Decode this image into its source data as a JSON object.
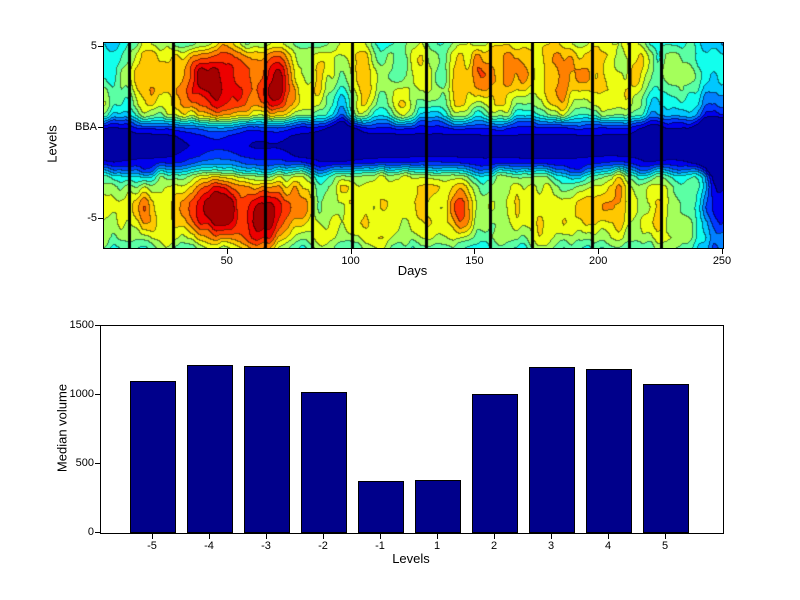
{
  "figure": {
    "background": "#ffffff"
  },
  "chart_data": [
    {
      "type": "heatmap",
      "title": "",
      "xlabel": "Days",
      "ylabel": "Levels",
      "xlim": [
        0,
        250
      ],
      "ylim_display": [
        5,
        -5
      ],
      "xticks": [
        50,
        100,
        150,
        200,
        250
      ],
      "ytick_labels": [
        "5",
        "BBA",
        "-5"
      ],
      "colormap": "jet",
      "grid": false,
      "description": "Filled contour of order-book volume by price level and day. Deep dark-blue band at the BBA (mid levels), cyan ring around it, green-yellow at outer levels, red-orange hotspots near days 35-75 at levels +/-2 to +/-4, cooler cyan-blue at the right edge. Thick black vertical event lines at selected days.",
      "event_lines_days": [
        10,
        28,
        65,
        84,
        100,
        130,
        156,
        173,
        197,
        212,
        225
      ],
      "pattern": {
        "contour_levels": 14,
        "level_profile": [
          [
            0.0,
            0.02
          ],
          [
            0.1,
            0.05
          ],
          [
            0.17,
            0.12
          ],
          [
            0.23,
            0.26
          ],
          [
            0.3,
            0.45
          ],
          [
            0.4,
            0.56
          ],
          [
            0.55,
            0.62
          ],
          [
            0.75,
            0.62
          ],
          [
            0.9,
            0.58
          ],
          [
            1.0,
            0.5
          ]
        ],
        "spots": [
          [
            44,
            3.1,
            9,
            1.5,
            0.3
          ],
          [
            47,
            -3.0,
            10,
            1.7,
            0.34
          ],
          [
            69,
            3.1,
            5,
            1.3,
            0.26
          ],
          [
            70,
            -3.2,
            5,
            1.5,
            0.22
          ],
          [
            60,
            -4.0,
            4,
            1.2,
            0.18
          ],
          [
            133,
            -3.2,
            10,
            1.5,
            0.1
          ],
          [
            160,
            3.0,
            8,
            1.5,
            0.08
          ],
          [
            193,
            3.4,
            10,
            1.4,
            0.1
          ],
          [
            205,
            -3.0,
            8,
            1.5,
            0.09
          ],
          [
            95,
            2.3,
            5,
            2.0,
            -0.16
          ],
          [
            3,
            4.3,
            5,
            2.2,
            -0.18
          ],
          [
            2,
            -4.5,
            4,
            2.0,
            -0.15
          ],
          [
            222,
            2.6,
            4,
            2.0,
            -0.14
          ],
          [
            245,
            3.0,
            6,
            2.5,
            -0.2
          ],
          [
            246,
            -3.0,
            6,
            2.5,
            -0.18
          ]
        ]
      }
    },
    {
      "type": "bar",
      "title": "",
      "xlabel": "Levels",
      "ylabel": "Median volume",
      "categories": [
        "-5",
        "-4",
        "-3",
        "-2",
        "-1",
        "1",
        "2",
        "3",
        "4",
        "5"
      ],
      "values": [
        1100,
        1220,
        1210,
        1020,
        380,
        385,
        1010,
        1200,
        1190,
        1080
      ],
      "ylim": [
        0,
        1500
      ],
      "yticks": [
        0,
        500,
        1000,
        1500
      ],
      "grid": false,
      "legend": null,
      "bar_color": "#00008b",
      "bar_edge_color": "#000000"
    }
  ]
}
